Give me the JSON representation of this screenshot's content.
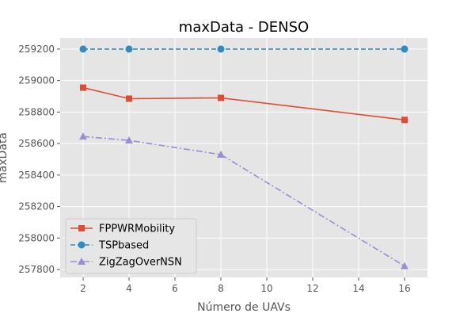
{
  "chart_data": {
    "type": "line",
    "title": "maxData - DENSO",
    "xlabel": "Número de UAVs",
    "ylabel": "maxData",
    "xlim": [
      1,
      17
    ],
    "ylim": [
      257750,
      259270
    ],
    "xticks": [
      2,
      4,
      6,
      8,
      10,
      12,
      14,
      16
    ],
    "yticks": [
      257800,
      258000,
      258200,
      258400,
      258600,
      258800,
      259000,
      259200
    ],
    "grid": true,
    "legend_position": "lower-left",
    "series": [
      {
        "name": "FPPWRMobility",
        "color": "#E24A33",
        "line_style": "solid",
        "marker": "square",
        "x": [
          2,
          4,
          8,
          16
        ],
        "y": [
          258955,
          258885,
          258890,
          258750
        ]
      },
      {
        "name": "TSPbased",
        "color": "#348ABD",
        "line_style": "dashed",
        "marker": "circle",
        "x": [
          2,
          4,
          8,
          16
        ],
        "y": [
          259200,
          259200,
          259200,
          259200
        ]
      },
      {
        "name": "ZigZagOverNSN",
        "color": "#988ED5",
        "line_style": "dashdot",
        "marker": "triangle",
        "x": [
          2,
          4,
          8,
          16
        ],
        "y": [
          258645,
          258620,
          258530,
          257822
        ]
      }
    ]
  }
}
